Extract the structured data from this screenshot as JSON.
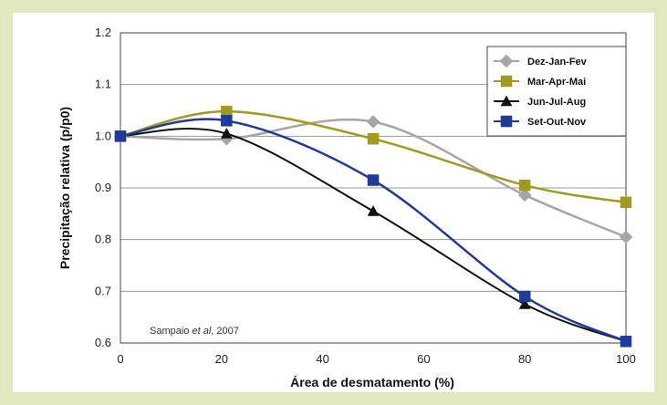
{
  "chart_data": {
    "type": "line",
    "xlabel": "Área de desmatamento (%)",
    "ylabel": "Precipitação relativa (p/p0)",
    "xlim": [
      0,
      100
    ],
    "ylim": [
      0.6,
      1.2
    ],
    "xticks": [
      0,
      20,
      40,
      60,
      80,
      100
    ],
    "yticks": [
      0.6,
      0.7,
      0.8,
      0.9,
      1.0,
      1.1,
      1.2
    ],
    "xtick_labels": [
      "0",
      "20",
      "40",
      "60",
      "80",
      "100"
    ],
    "ytick_labels": [
      "0.6",
      "0.7",
      "0.8",
      "0.9",
      "1.0",
      "1.1",
      "1.2"
    ],
    "grid": "horizontal",
    "legend_position": "top-right",
    "series": [
      {
        "name": "Dez-Jan-Fev",
        "color": "#a6a6a6",
        "marker": "diamond",
        "x": [
          0,
          21,
          50,
          80,
          100
        ],
        "y": [
          1.0,
          0.995,
          1.028,
          0.886,
          0.805
        ]
      },
      {
        "name": "Mar-Apr-Mai",
        "color": "#a09a1e",
        "marker": "square",
        "x": [
          0,
          21,
          50,
          80,
          100
        ],
        "y": [
          1.0,
          1.048,
          0.995,
          0.905,
          0.872
        ]
      },
      {
        "name": "Jun-Jul-Aug",
        "color": "#111111",
        "marker": "triangle",
        "x": [
          0,
          21,
          50,
          80,
          100
        ],
        "y": [
          1.0,
          1.005,
          0.855,
          0.675,
          0.603
        ]
      },
      {
        "name": "Set-Out-Nov",
        "color": "#1f3a99",
        "marker": "square",
        "x": [
          0,
          21,
          50,
          80,
          100
        ],
        "y": [
          1.0,
          1.03,
          0.915,
          0.69,
          0.603
        ]
      }
    ],
    "annotation": "Sampaio et al, 2007"
  }
}
